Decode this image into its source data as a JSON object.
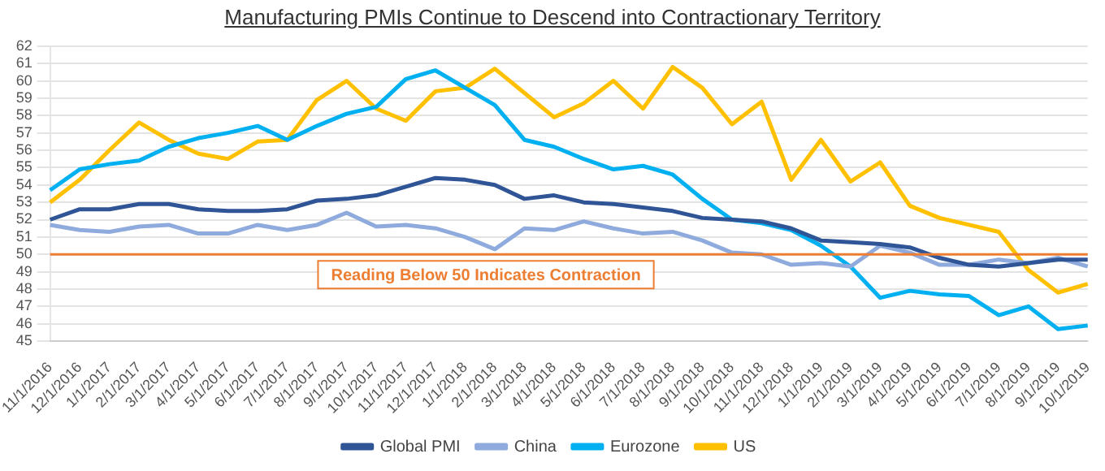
{
  "chart_data": {
    "type": "line",
    "title": "Manufacturing PMIs Continue to Descend into Contractionary Territory",
    "categories": [
      "11/1/2016",
      "12/1/2016",
      "1/1/2017",
      "2/1/2017",
      "3/1/2017",
      "4/1/2017",
      "5/1/2017",
      "6/1/2017",
      "7/1/2017",
      "8/1/2017",
      "9/1/2017",
      "10/1/2017",
      "11/1/2017",
      "12/1/2017",
      "1/1/2018",
      "2/1/2018",
      "3/1/2018",
      "4/1/2018",
      "5/1/2018",
      "6/1/2018",
      "7/1/2018",
      "8/1/2018",
      "9/1/2018",
      "10/1/2018",
      "11/1/2018",
      "12/1/2018",
      "1/1/2019",
      "2/1/2019",
      "3/1/2019",
      "4/1/2019",
      "5/1/2019",
      "6/1/2019",
      "7/1/2019",
      "8/1/2019",
      "9/1/2019",
      "10/1/2019"
    ],
    "series": [
      {
        "name": "Global PMI",
        "color": "#2f5597",
        "values": [
          52.0,
          52.6,
          52.6,
          52.9,
          52.9,
          52.6,
          52.5,
          52.5,
          52.6,
          53.1,
          53.2,
          53.4,
          53.9,
          54.4,
          54.3,
          54.0,
          53.2,
          53.4,
          53.0,
          52.9,
          52.7,
          52.5,
          52.1,
          52.0,
          51.9,
          51.5,
          50.8,
          50.7,
          50.6,
          50.4,
          49.8,
          49.4,
          49.3,
          49.5,
          49.7,
          49.7
        ]
      },
      {
        "name": "China",
        "color": "#8faadc",
        "values": [
          51.7,
          51.4,
          51.3,
          51.6,
          51.7,
          51.2,
          51.2,
          51.7,
          51.4,
          51.7,
          52.4,
          51.6,
          51.7,
          51.5,
          51.0,
          50.3,
          51.5,
          51.4,
          51.9,
          51.5,
          51.2,
          51.3,
          50.8,
          50.1,
          50.0,
          49.4,
          49.5,
          49.3,
          50.5,
          50.1,
          49.4,
          49.4,
          49.7,
          49.5,
          49.8,
          49.3
        ]
      },
      {
        "name": "Eurozone",
        "color": "#00b0f0",
        "values": [
          53.7,
          54.9,
          55.2,
          55.4,
          56.2,
          56.7,
          57.0,
          57.4,
          56.6,
          57.4,
          58.1,
          58.5,
          60.1,
          60.6,
          59.6,
          58.6,
          56.6,
          56.2,
          55.5,
          54.9,
          55.1,
          54.6,
          53.2,
          52.0,
          51.8,
          51.4,
          50.5,
          49.3,
          47.5,
          47.9,
          47.7,
          47.6,
          46.5,
          47.0,
          45.7,
          45.9
        ]
      },
      {
        "name": "US",
        "color": "#ffc000",
        "values": [
          53.0,
          54.3,
          56.0,
          57.6,
          56.6,
          55.8,
          55.5,
          56.5,
          56.6,
          58.9,
          60.0,
          58.4,
          57.7,
          59.4,
          59.6,
          60.7,
          59.3,
          57.9,
          58.7,
          60.0,
          58.4,
          60.8,
          59.6,
          57.5,
          58.8,
          54.3,
          56.6,
          54.2,
          55.3,
          52.8,
          52.1,
          51.7,
          51.3,
          49.1,
          47.8,
          48.3
        ]
      }
    ],
    "ylim": [
      45,
      62
    ],
    "yticks": [
      45,
      46,
      47,
      48,
      49,
      50,
      51,
      52,
      53,
      54,
      55,
      56,
      57,
      58,
      59,
      60,
      61,
      62
    ],
    "ref_lines": [
      {
        "axis": "y",
        "value": 50,
        "label": "Reading Below 50 Indicates Contraction",
        "color": "#ed7d31"
      }
    ],
    "grid": "y",
    "legend": "bottom",
    "marker": "none",
    "line_style": "solid"
  }
}
